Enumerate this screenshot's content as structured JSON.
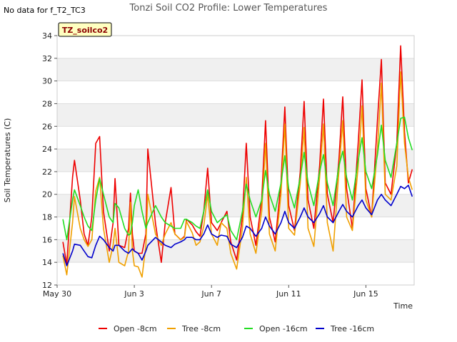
{
  "page": {
    "no_data_note": "No data for f_T2_TC3",
    "badge": "TZ_soilco2"
  },
  "chart_data": {
    "type": "line",
    "title": "Tonzi Soil CO2 Profile: Lower Temperatures",
    "xlabel": "Time",
    "ylabel": "Soil Temperatures (C)",
    "ylim": [
      12,
      34
    ],
    "xlim": [
      0,
      18.5
    ],
    "yticks": [
      12,
      14,
      16,
      18,
      20,
      22,
      24,
      26,
      28,
      30,
      32,
      34
    ],
    "xticks": [
      {
        "v": 0,
        "label": "May 30"
      },
      {
        "v": 4,
        "label": "Jun 3"
      },
      {
        "v": 8,
        "label": "Jun 7"
      },
      {
        "v": 12,
        "label": "Jun 11"
      },
      {
        "v": 16,
        "label": "Jun 15"
      }
    ],
    "grid": true,
    "legend_position": "bottom",
    "series": [
      {
        "name": "Open -8cm",
        "color": "#ee0000",
        "x": [
          0.3,
          0.5,
          0.8,
          0.9,
          1.2,
          1.4,
          1.6,
          1.8,
          2.0,
          2.2,
          2.4,
          2.7,
          2.9,
          3.0,
          3.2,
          3.5,
          3.7,
          3.8,
          3.9,
          4.0,
          4.2,
          4.4,
          4.6,
          4.7,
          5.1,
          5.4,
          5.6,
          5.9,
          6.1,
          6.4,
          6.6,
          6.7,
          7.0,
          7.2,
          7.4,
          7.6,
          7.8,
          8.0,
          8.3,
          8.5,
          8.8,
          9.0,
          9.3,
          9.6,
          9.8,
          10.0,
          10.3,
          10.6,
          10.8,
          11.0,
          11.3,
          11.6,
          11.8,
          12.0,
          12.3,
          12.6,
          12.8,
          13.0,
          13.3,
          13.6,
          13.8,
          14.0,
          14.3,
          14.6,
          14.8,
          15.0,
          15.3,
          15.6,
          15.8,
          16.0,
          16.3,
          16.6,
          16.8,
          17.0,
          17.3,
          17.6,
          17.8,
          18.0,
          18.2,
          18.4
        ],
        "y": [
          15.8,
          13.8,
          21.5,
          23.0,
          19.5,
          16.5,
          15.5,
          18.0,
          24.5,
          25.1,
          18.5,
          15.0,
          17.5,
          21.4,
          15.5,
          15.3,
          17.0,
          20.1,
          16.5,
          15.0,
          14.8,
          14.8,
          16.5,
          24.0,
          17.4,
          14.0,
          17.5,
          20.6,
          16.5,
          16.0,
          16.3,
          17.8,
          17.3,
          16.7,
          16.3,
          18.5,
          22.3,
          17.5,
          16.8,
          17.5,
          18.5,
          15.8,
          14.2,
          18.0,
          24.5,
          18.0,
          15.5,
          19.5,
          26.5,
          18.0,
          15.8,
          21.0,
          27.7,
          19.0,
          16.8,
          22.0,
          28.2,
          19.5,
          17.0,
          22.5,
          28.4,
          20.0,
          17.5,
          23.0,
          28.6,
          20.5,
          17.0,
          24.5,
          30.1,
          20.5,
          18.0,
          26.5,
          31.9,
          21.0,
          20.0,
          24.5,
          33.1,
          25.5,
          21.0,
          22.2
        ]
      },
      {
        "name": "Tree -8cm",
        "color": "#f0a000",
        "x": [
          0.3,
          0.5,
          0.8,
          0.9,
          1.2,
          1.4,
          1.6,
          1.8,
          2.0,
          2.2,
          2.4,
          2.7,
          2.9,
          3.0,
          3.2,
          3.5,
          3.7,
          3.8,
          3.9,
          4.0,
          4.2,
          4.4,
          4.6,
          4.7,
          5.1,
          5.4,
          5.6,
          5.9,
          6.1,
          6.4,
          6.6,
          6.7,
          7.0,
          7.2,
          7.4,
          7.6,
          7.8,
          8.0,
          8.3,
          8.5,
          8.8,
          9.0,
          9.3,
          9.6,
          9.8,
          10.0,
          10.3,
          10.6,
          10.8,
          11.0,
          11.3,
          11.6,
          11.8,
          12.0,
          12.3,
          12.6,
          12.8,
          13.0,
          13.3,
          13.6,
          13.8,
          14.0,
          14.3,
          14.6,
          14.8,
          15.0,
          15.3,
          15.6,
          15.8,
          16.0,
          16.3,
          16.6,
          16.8,
          17.0,
          17.3,
          17.6,
          17.8,
          18.0,
          18.2,
          18.4
        ],
        "y": [
          14.6,
          12.9,
          17.5,
          19.8,
          17.0,
          16.0,
          15.4,
          16.0,
          20.3,
          21.5,
          17.0,
          14.0,
          15.5,
          17.0,
          14.0,
          13.7,
          15.0,
          19.3,
          15.0,
          13.7,
          13.6,
          12.7,
          15.5,
          20.0,
          16.5,
          15.5,
          16.5,
          17.5,
          16.5,
          16.0,
          16.2,
          17.6,
          16.6,
          15.5,
          15.8,
          17.2,
          20.0,
          16.5,
          15.5,
          17.5,
          17.0,
          14.8,
          13.4,
          17.0,
          21.5,
          16.5,
          14.8,
          18.5,
          24.5,
          16.5,
          15.0,
          20.0,
          26.2,
          17.0,
          16.4,
          21.0,
          25.9,
          17.0,
          15.4,
          21.5,
          26.2,
          17.5,
          15.0,
          22.0,
          26.5,
          18.0,
          16.8,
          22.5,
          27.8,
          19.5,
          18.0,
          24.0,
          29.8,
          20.0,
          19.5,
          22.5,
          30.8,
          24.5,
          21.5,
          20.4
        ]
      },
      {
        "name": "Open -16cm",
        "color": "#22dd22",
        "x": [
          0.3,
          0.5,
          0.8,
          0.9,
          1.2,
          1.4,
          1.6,
          1.8,
          2.0,
          2.2,
          2.4,
          2.7,
          2.9,
          3.0,
          3.2,
          3.5,
          3.7,
          3.8,
          3.9,
          4.0,
          4.2,
          4.4,
          4.6,
          4.7,
          5.1,
          5.4,
          5.6,
          5.9,
          6.1,
          6.4,
          6.6,
          6.7,
          7.0,
          7.2,
          7.4,
          7.6,
          7.8,
          8.0,
          8.3,
          8.5,
          8.8,
          9.0,
          9.3,
          9.6,
          9.8,
          10.0,
          10.3,
          10.6,
          10.8,
          11.0,
          11.3,
          11.6,
          11.8,
          12.0,
          12.3,
          12.6,
          12.8,
          13.0,
          13.3,
          13.6,
          13.8,
          14.0,
          14.3,
          14.6,
          14.8,
          15.0,
          15.3,
          15.6,
          15.8,
          16.0,
          16.3,
          16.6,
          16.8,
          17.0,
          17.3,
          17.6,
          17.8,
          18.0,
          18.2,
          18.4
        ],
        "y": [
          17.8,
          16.0,
          19.5,
          20.4,
          19.0,
          18.0,
          17.2,
          16.8,
          19.5,
          21.4,
          20.0,
          18.0,
          17.5,
          19.2,
          18.8,
          17.0,
          16.4,
          16.5,
          17.5,
          19.0,
          20.4,
          18.5,
          17.0,
          17.5,
          19.0,
          18.0,
          17.5,
          17.2,
          17.0,
          17.0,
          17.8,
          17.8,
          17.5,
          17.2,
          17.0,
          18.5,
          20.4,
          18.5,
          17.5,
          17.8,
          18.2,
          16.8,
          16.0,
          18.5,
          20.9,
          19.5,
          18.0,
          19.5,
          22.1,
          20.0,
          18.5,
          21.0,
          23.4,
          20.5,
          18.8,
          21.5,
          23.7,
          21.0,
          19.0,
          22.0,
          23.5,
          21.0,
          19.0,
          22.5,
          23.8,
          21.5,
          19.5,
          23.0,
          25.0,
          22.0,
          20.5,
          23.5,
          26.1,
          23.0,
          21.5,
          24.5,
          26.7,
          26.8,
          25.0,
          23.9
        ]
      },
      {
        "name": "Tree -16cm",
        "color": "#0000cc",
        "x": [
          0.3,
          0.5,
          0.8,
          0.9,
          1.2,
          1.4,
          1.6,
          1.8,
          2.0,
          2.2,
          2.4,
          2.7,
          2.9,
          3.0,
          3.2,
          3.5,
          3.7,
          3.8,
          3.9,
          4.0,
          4.2,
          4.4,
          4.6,
          4.7,
          5.1,
          5.4,
          5.6,
          5.9,
          6.1,
          6.4,
          6.6,
          6.7,
          7.0,
          7.2,
          7.4,
          7.6,
          7.8,
          8.0,
          8.3,
          8.5,
          8.8,
          9.0,
          9.3,
          9.6,
          9.8,
          10.0,
          10.3,
          10.6,
          10.8,
          11.0,
          11.3,
          11.6,
          11.8,
          12.0,
          12.3,
          12.6,
          12.8,
          13.0,
          13.3,
          13.6,
          13.8,
          14.0,
          14.3,
          14.6,
          14.8,
          15.0,
          15.3,
          15.6,
          15.8,
          16.0,
          16.3,
          16.6,
          16.8,
          17.0,
          17.3,
          17.6,
          17.8,
          18.0,
          18.2,
          18.4
        ],
        "y": [
          14.8,
          13.7,
          15.0,
          15.6,
          15.5,
          15.0,
          14.5,
          14.4,
          15.5,
          16.3,
          16.0,
          15.3,
          15.0,
          15.5,
          15.5,
          15.0,
          14.8,
          15.0,
          15.2,
          15.0,
          14.8,
          14.2,
          15.0,
          15.5,
          16.2,
          15.8,
          15.5,
          15.3,
          15.6,
          15.8,
          16.0,
          16.2,
          16.2,
          16.0,
          16.0,
          16.5,
          17.3,
          16.5,
          16.2,
          16.4,
          16.3,
          15.6,
          15.3,
          16.2,
          17.2,
          17.0,
          16.3,
          17.0,
          18.0,
          17.2,
          16.5,
          17.5,
          18.5,
          17.5,
          17.0,
          18.0,
          18.8,
          18.0,
          17.5,
          18.3,
          19.0,
          18.0,
          17.5,
          18.5,
          19.1,
          18.5,
          18.0,
          19.0,
          19.5,
          18.8,
          18.2,
          19.5,
          20.0,
          19.5,
          19.0,
          20.0,
          20.7,
          20.5,
          20.8,
          19.8
        ]
      }
    ]
  }
}
